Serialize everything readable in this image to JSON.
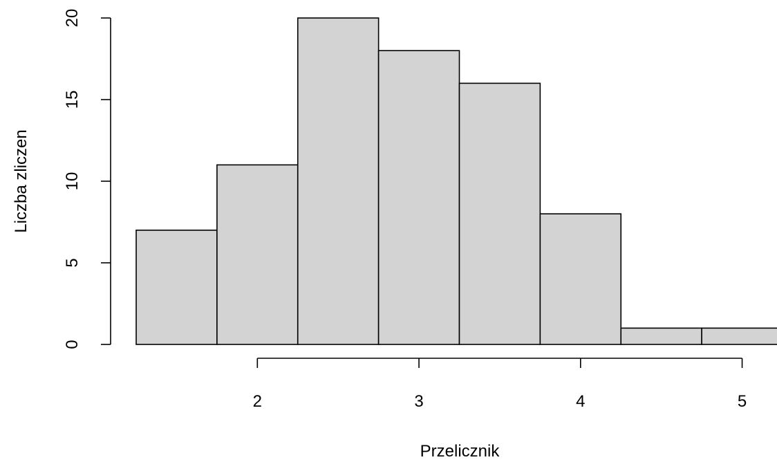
{
  "chart_data": {
    "type": "bar",
    "title": "",
    "xlabel": "Przelicznik",
    "ylabel": "Liczba zliczen",
    "bins": [
      {
        "start": 1.25,
        "end": 1.75,
        "count": 7
      },
      {
        "start": 1.75,
        "end": 2.25,
        "count": 11
      },
      {
        "start": 2.25,
        "end": 2.75,
        "count": 20
      },
      {
        "start": 2.75,
        "end": 3.25,
        "count": 18
      },
      {
        "start": 3.25,
        "end": 3.75,
        "count": 16
      },
      {
        "start": 3.75,
        "end": 4.25,
        "count": 8
      },
      {
        "start": 4.25,
        "end": 4.75,
        "count": 1
      },
      {
        "start": 4.75,
        "end": 5.25,
        "count": 1
      }
    ],
    "x_ticks": [
      "2",
      "3",
      "4",
      "5"
    ],
    "y_ticks": [
      "0",
      "5",
      "10",
      "15",
      "20"
    ],
    "xlim": [
      1.25,
      5.25
    ],
    "ylim": [
      0,
      20
    ],
    "grid": false,
    "colors": {
      "bar_fill": "#d3d3d3",
      "bar_stroke": "#000000"
    }
  }
}
